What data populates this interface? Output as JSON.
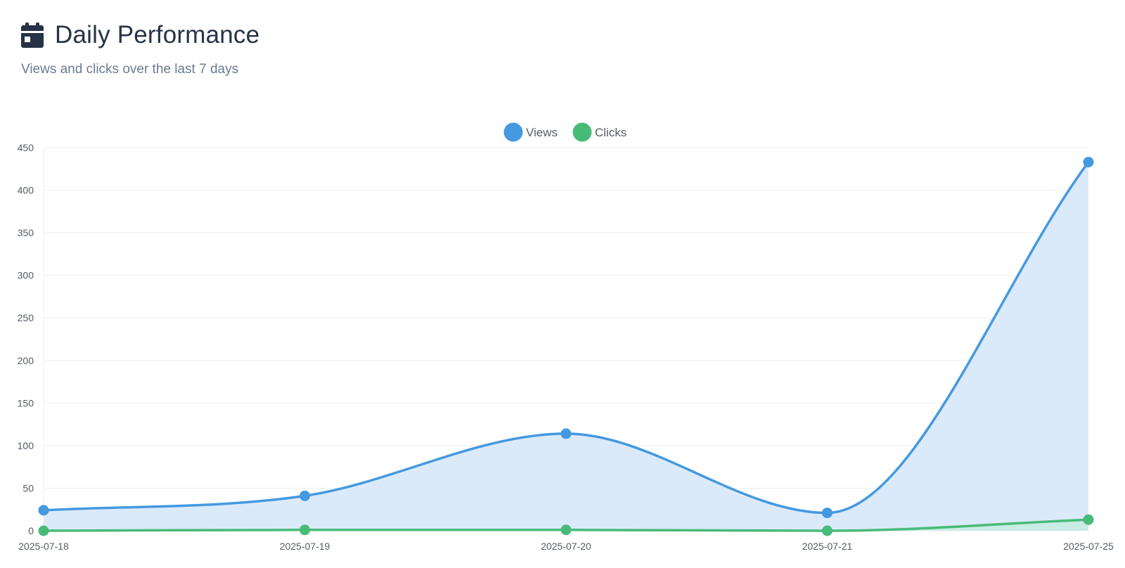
{
  "header": {
    "title": "Daily Performance",
    "subtitle": "Views and clicks over the last 7 days",
    "icon": "calendar-icon"
  },
  "colors": {
    "views": "#4499e0",
    "views_fill": "#dbeafa",
    "clicks": "#48bb78",
    "clicks_fill": "#c6ece0",
    "grid": "#eeeeee",
    "title": "#273246"
  },
  "chart_data": {
    "type": "line",
    "categories": [
      "2025-07-18",
      "2025-07-19",
      "2025-07-20",
      "2025-07-21",
      "2025-07-25"
    ],
    "series": [
      {
        "name": "Views",
        "values": [
          24,
          41,
          114,
          21,
          433
        ]
      },
      {
        "name": "Clicks",
        "values": [
          0,
          1,
          1,
          0,
          13
        ]
      }
    ],
    "ylim": [
      0,
      450
    ],
    "yticks": [
      0,
      50,
      100,
      150,
      200,
      250,
      300,
      350,
      400,
      450
    ],
    "grid": true,
    "legend": "top-center",
    "area_fill": true,
    "smooth": true
  }
}
